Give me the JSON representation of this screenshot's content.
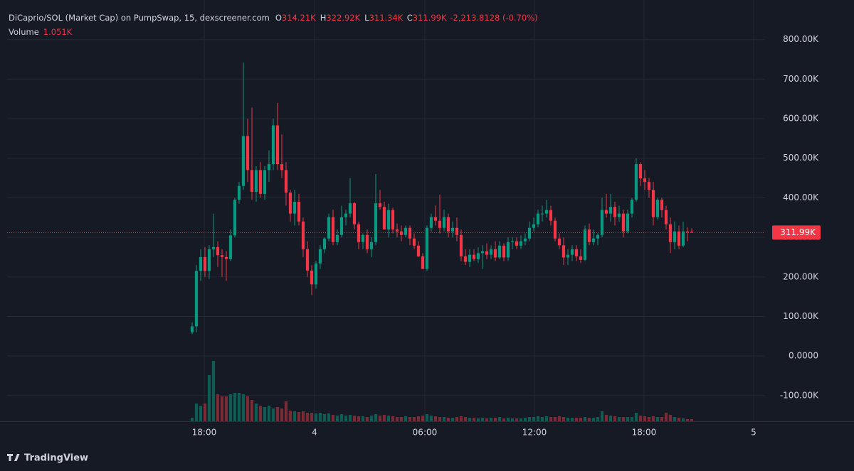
{
  "chart_data": {
    "type": "candlestick",
    "title": "DiCaprio/SOL (Market Cap) on PumpSwap, 15, dexscreener.com",
    "legend": {
      "ohlc": [
        {
          "label": "O",
          "value": "314.21K"
        },
        {
          "label": "H",
          "value": "322.92K"
        },
        {
          "label": "L",
          "value": "311.34K"
        },
        {
          "label": "C",
          "value": "311.99K"
        }
      ],
      "change": "-2,213.8128 (-0.70%)",
      "volume_label": "Volume",
      "volume_value": "1.051K"
    },
    "brand": "TradingView",
    "up_color": "#089981",
    "down_color": "#f23645",
    "volume_up_color": "#0e5c53",
    "volume_down_color": "#7b2b36",
    "grid": true,
    "ylim": [
      -165000,
      900000
    ],
    "yticks": [
      {
        "value": 800000,
        "label": "800.00K"
      },
      {
        "value": 700000,
        "label": "700.00K"
      },
      {
        "value": 600000,
        "label": "600.00K"
      },
      {
        "value": 500000,
        "label": "500.00K"
      },
      {
        "value": 400000,
        "label": "400.00K"
      },
      {
        "value": 300000,
        "label": "300.00K"
      },
      {
        "value": 200000,
        "label": "200.00K"
      },
      {
        "value": 100000,
        "label": "100.00K"
      },
      {
        "value": 0,
        "label": "0.0000"
      },
      {
        "value": -100000,
        "label": "-100.00K"
      }
    ],
    "xlim": [
      -43.33,
      134.17
    ],
    "xticks": [
      {
        "value": 2.83,
        "label": "18:00"
      },
      {
        "value": 28.67,
        "label": "4"
      },
      {
        "value": 54.5,
        "label": "06:00"
      },
      {
        "value": 80.17,
        "label": "12:00"
      },
      {
        "value": 105.83,
        "label": "18:00"
      },
      {
        "value": 131.5,
        "label": "5"
      }
    ],
    "last_price": {
      "value": 311990,
      "label": "311.99K"
    },
    "open": [
      60000,
      75000,
      215000,
      250000,
      215000,
      270000,
      275000,
      255000,
      250000,
      245000,
      305000,
      395000,
      430000,
      556000,
      470000,
      415000,
      470000,
      410000,
      470000,
      485000,
      583000,
      485000,
      470000,
      413000,
      360000,
      390000,
      340000,
      270000,
      216000,
      181000,
      234000,
      270000,
      297000,
      351000,
      288000,
      306000,
      351000,
      360000,
      386000,
      333000,
      288000,
      306000,
      270000,
      288000,
      386000,
      377000,
      320000,
      369000,
      320000,
      315000,
      306000,
      324000,
      297000,
      279000,
      252000,
      220000,
      324000,
      351000,
      342000,
      324000,
      351000,
      315000,
      324000,
      306000,
      252000,
      238000,
      256000,
      245000,
      260000,
      265000,
      256000,
      270000,
      249000,
      279000,
      249000,
      288000,
      290000,
      279000,
      290000,
      297000,
      324000,
      333000,
      360000,
      360000,
      369000,
      342000,
      297000,
      280000,
      249000,
      256000,
      270000,
      252000,
      243000,
      320000,
      288000,
      297000,
      306000,
      369000,
      360000,
      377000,
      351000,
      360000,
      315000,
      360000,
      395000,
      485000,
      449000,
      440000,
      420000,
      351000,
      395000,
      369000,
      333000,
      288000,
      315000,
      279000,
      315000,
      314210
    ],
    "high": [
      85000,
      230000,
      270000,
      275000,
      280000,
      360000,
      290000,
      270000,
      265000,
      320000,
      400000,
      440000,
      742000,
      600000,
      628000,
      480000,
      490000,
      480000,
      520000,
      600000,
      640000,
      560000,
      490000,
      420000,
      420000,
      410000,
      350000,
      290000,
      230000,
      240000,
      280000,
      300000,
      360000,
      370000,
      320000,
      380000,
      370000,
      450000,
      390000,
      340000,
      310000,
      320000,
      300000,
      460000,
      420000,
      390000,
      385000,
      375000,
      335000,
      330000,
      330000,
      330000,
      310000,
      290000,
      260000,
      330000,
      360000,
      380000,
      408000,
      370000,
      360000,
      340000,
      350000,
      320000,
      270000,
      270000,
      270000,
      275000,
      280000,
      285000,
      280000,
      290000,
      290000,
      285000,
      300000,
      300000,
      300000,
      305000,
      310000,
      340000,
      350000,
      370000,
      380000,
      395000,
      380000,
      350000,
      310000,
      300000,
      270000,
      280000,
      280000,
      270000,
      330000,
      335000,
      320000,
      310000,
      400000,
      410000,
      410000,
      390000,
      380000,
      370000,
      370000,
      400000,
      500000,
      490000,
      470000,
      450000,
      440000,
      400000,
      400000,
      380000,
      350000,
      340000,
      330000,
      340000,
      325000,
      322920
    ],
    "low": [
      55000,
      60000,
      190000,
      200000,
      195000,
      250000,
      225000,
      200000,
      190000,
      240000,
      300000,
      385000,
      420000,
      440000,
      395000,
      390000,
      400000,
      395000,
      440000,
      470000,
      470000,
      450000,
      380000,
      340000,
      330000,
      330000,
      250000,
      200000,
      154000,
      170000,
      220000,
      260000,
      290000,
      280000,
      280000,
      300000,
      330000,
      350000,
      320000,
      270000,
      270000,
      260000,
      250000,
      280000,
      370000,
      320000,
      300000,
      310000,
      300000,
      290000,
      300000,
      280000,
      270000,
      250000,
      220000,
      215000,
      315000,
      330000,
      310000,
      315000,
      300000,
      300000,
      290000,
      240000,
      230000,
      225000,
      240000,
      235000,
      220000,
      245000,
      245000,
      240000,
      245000,
      240000,
      240000,
      270000,
      270000,
      270000,
      280000,
      290000,
      315000,
      325000,
      340000,
      350000,
      330000,
      290000,
      270000,
      230000,
      230000,
      240000,
      240000,
      235000,
      240000,
      280000,
      280000,
      280000,
      300000,
      350000,
      340000,
      330000,
      340000,
      300000,
      310000,
      350000,
      390000,
      430000,
      420000,
      400000,
      330000,
      345000,
      350000,
      320000,
      260000,
      270000,
      270000,
      275000,
      290000,
      311340
    ],
    "close": [
      75000,
      215000,
      250000,
      215000,
      270000,
      275000,
      255000,
      250000,
      245000,
      305000,
      395000,
      430000,
      556000,
      470000,
      415000,
      470000,
      410000,
      470000,
      485000,
      583000,
      485000,
      470000,
      413000,
      360000,
      390000,
      340000,
      270000,
      216000,
      181000,
      234000,
      270000,
      297000,
      351000,
      288000,
      306000,
      351000,
      360000,
      386000,
      333000,
      288000,
      306000,
      270000,
      288000,
      386000,
      377000,
      320000,
      369000,
      320000,
      315000,
      306000,
      324000,
      297000,
      279000,
      252000,
      220000,
      324000,
      351000,
      342000,
      324000,
      351000,
      315000,
      324000,
      306000,
      252000,
      238000,
      256000,
      245000,
      260000,
      265000,
      256000,
      270000,
      249000,
      279000,
      249000,
      288000,
      290000,
      279000,
      290000,
      297000,
      324000,
      333000,
      360000,
      360000,
      369000,
      342000,
      297000,
      280000,
      249000,
      256000,
      270000,
      252000,
      243000,
      320000,
      288000,
      297000,
      306000,
      369000,
      360000,
      377000,
      351000,
      360000,
      315000,
      360000,
      395000,
      485000,
      449000,
      440000,
      420000,
      351000,
      395000,
      369000,
      333000,
      288000,
      315000,
      279000,
      315000,
      314000,
      311990
    ],
    "volume": [
      1750,
      8750,
      7700,
      8750,
      22750,
      29750,
      13300,
      12250,
      12250,
      13300,
      14000,
      14000,
      13300,
      12250,
      10500,
      8750,
      7700,
      7000,
      7700,
      6300,
      7000,
      6300,
      9800,
      5250,
      4900,
      4550,
      4900,
      4200,
      4200,
      3850,
      4200,
      3500,
      3850,
      3150,
      2800,
      3500,
      2800,
      3150,
      2800,
      2450,
      2450,
      2100,
      2800,
      3500,
      2800,
      3150,
      2800,
      2450,
      2100,
      2100,
      2450,
      2100,
      2100,
      2450,
      2800,
      3500,
      2800,
      2450,
      2100,
      2100,
      1750,
      1750,
      2100,
      2450,
      2100,
      1750,
      1750,
      1400,
      1750,
      1400,
      1750,
      1750,
      2100,
      1400,
      1750,
      1400,
      1400,
      1400,
      1750,
      2100,
      2100,
      2450,
      2100,
      2450,
      2100,
      2100,
      2450,
      2100,
      1750,
      1750,
      1750,
      1750,
      2100,
      1750,
      1750,
      2100,
      4900,
      3150,
      2800,
      2450,
      2100,
      2100,
      2100,
      2100,
      4200,
      2800,
      2450,
      2100,
      2450,
      2100,
      2100,
      4200,
      3150,
      2100,
      1750,
      1400,
      1050,
      1051
    ]
  }
}
